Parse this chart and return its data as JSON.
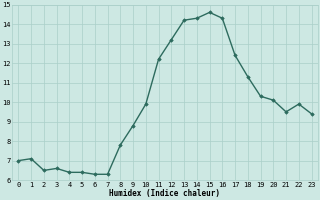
{
  "x": [
    0,
    1,
    2,
    3,
    4,
    5,
    6,
    7,
    8,
    9,
    10,
    11,
    12,
    13,
    14,
    15,
    16,
    17,
    18,
    19,
    20,
    21,
    22,
    23
  ],
  "y": [
    7.0,
    7.1,
    6.5,
    6.6,
    6.4,
    6.4,
    6.3,
    6.3,
    7.8,
    8.8,
    9.9,
    12.2,
    13.2,
    14.2,
    14.3,
    14.6,
    14.3,
    12.4,
    11.3,
    10.3,
    10.1,
    9.5,
    9.9,
    9.4
  ],
  "xlabel": "Humidex (Indice chaleur)",
  "ylabel": "",
  "xlim_min": -0.5,
  "xlim_max": 23.5,
  "ylim_min": 6,
  "ylim_max": 15,
  "yticks": [
    6,
    7,
    8,
    9,
    10,
    11,
    12,
    13,
    14,
    15
  ],
  "xticks": [
    0,
    1,
    2,
    3,
    4,
    5,
    6,
    7,
    8,
    9,
    10,
    11,
    12,
    13,
    14,
    15,
    16,
    17,
    18,
    19,
    20,
    21,
    22,
    23
  ],
  "line_color": "#2d6b5e",
  "bg_color": "#cde8e3",
  "grid_color": "#aacfc9",
  "marker": "D",
  "marker_size": 1.8,
  "line_width": 1.0,
  "xlabel_fontsize": 5.5,
  "tick_fontsize": 5.0
}
